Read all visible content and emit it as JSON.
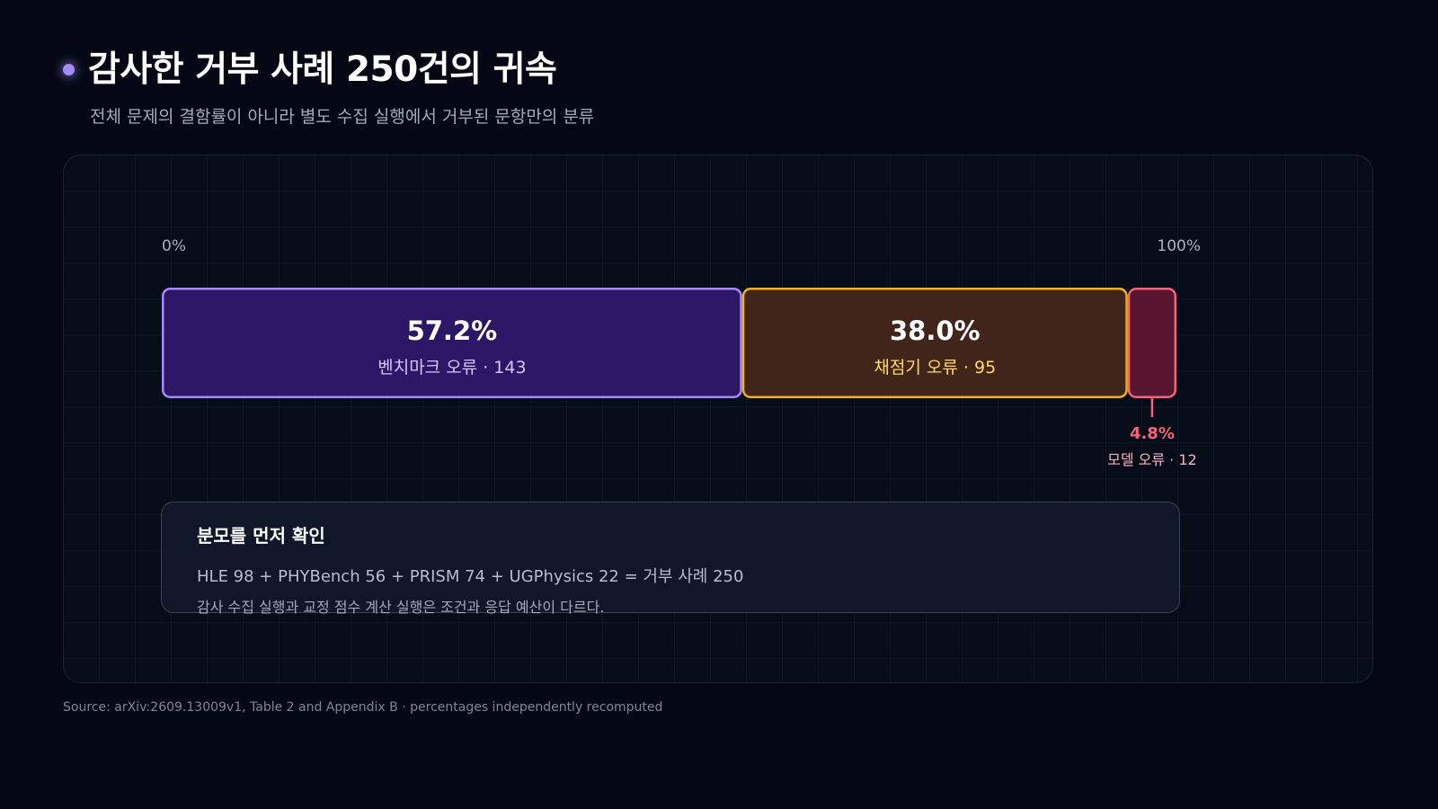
{
  "header": {
    "title": "감사한 거부 사례 250건의 귀속",
    "subtitle": "전체 문제의 결함률이 아니라 별도 수집 실행에서 거부된 문항만의 분류"
  },
  "chart_data": {
    "type": "bar",
    "orientation": "horizontal-stacked",
    "axis_labels": [
      "0%",
      "100%"
    ],
    "xlim": [
      0,
      100
    ],
    "total": 250,
    "segments": [
      {
        "name": "벤치마크 오류",
        "percent": 57.2,
        "percent_label": "57.2%",
        "count": 143,
        "label": "벤치마크 오류 · 143",
        "color": "#a58bfa",
        "fill": "#2b1766",
        "text_color": "#d4c6ff"
      },
      {
        "name": "채점기 오류",
        "percent": 38.0,
        "percent_label": "38.0%",
        "count": 95,
        "label": "채점기 오류 · 95",
        "color": "#f2b01e",
        "fill": "#42251a",
        "text_color": "#ffd968"
      },
      {
        "name": "모델 오류",
        "percent": 4.8,
        "percent_label": "4.8%",
        "count": 12,
        "label": "모델 오류 · 12",
        "color": "#f2657c",
        "fill": "#571530",
        "text_color": "#f2657c"
      }
    ]
  },
  "note": {
    "title": "분모를 먼저 확인",
    "line1": "HLE 98 + PHYBench 56 + PRISM 74 + UGPhysics 22 = 거부 사례 250",
    "line2": "감사 수집 실행과 교정 점수 계산 실행은 조건과 응답 예산이 다르다."
  },
  "source": "Source: arXiv:2609.13009v1, Table 2 and Appendix B · percentages independently recomputed"
}
